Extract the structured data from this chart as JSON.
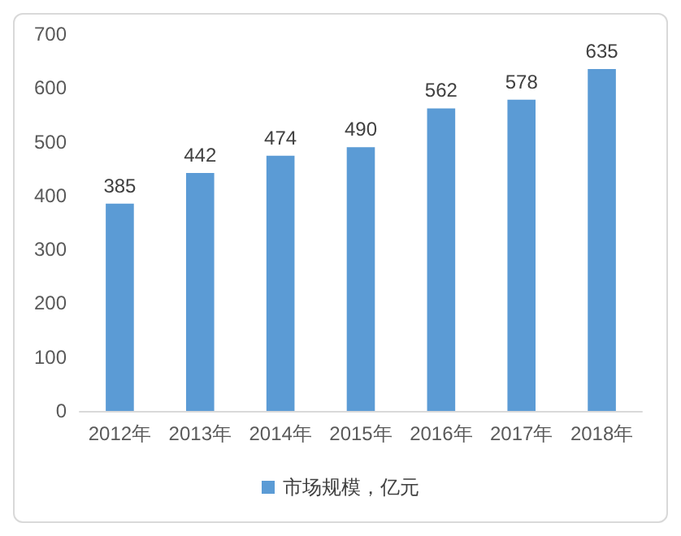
{
  "chart_data": {
    "type": "bar",
    "categories": [
      "2012年",
      "2013年",
      "2014年",
      "2015年",
      "2016年",
      "2017年",
      "2018年"
    ],
    "series": [
      {
        "name": "市场规模，亿元",
        "color": "#5b9bd5",
        "values": [
          385,
          442,
          474,
          490,
          562,
          578,
          635
        ]
      }
    ],
    "ylim": [
      0,
      700
    ],
    "yticks": [
      0,
      100,
      200,
      300,
      400,
      500,
      600,
      700
    ],
    "grid": false,
    "legend": "bottom",
    "data_labels": true
  }
}
